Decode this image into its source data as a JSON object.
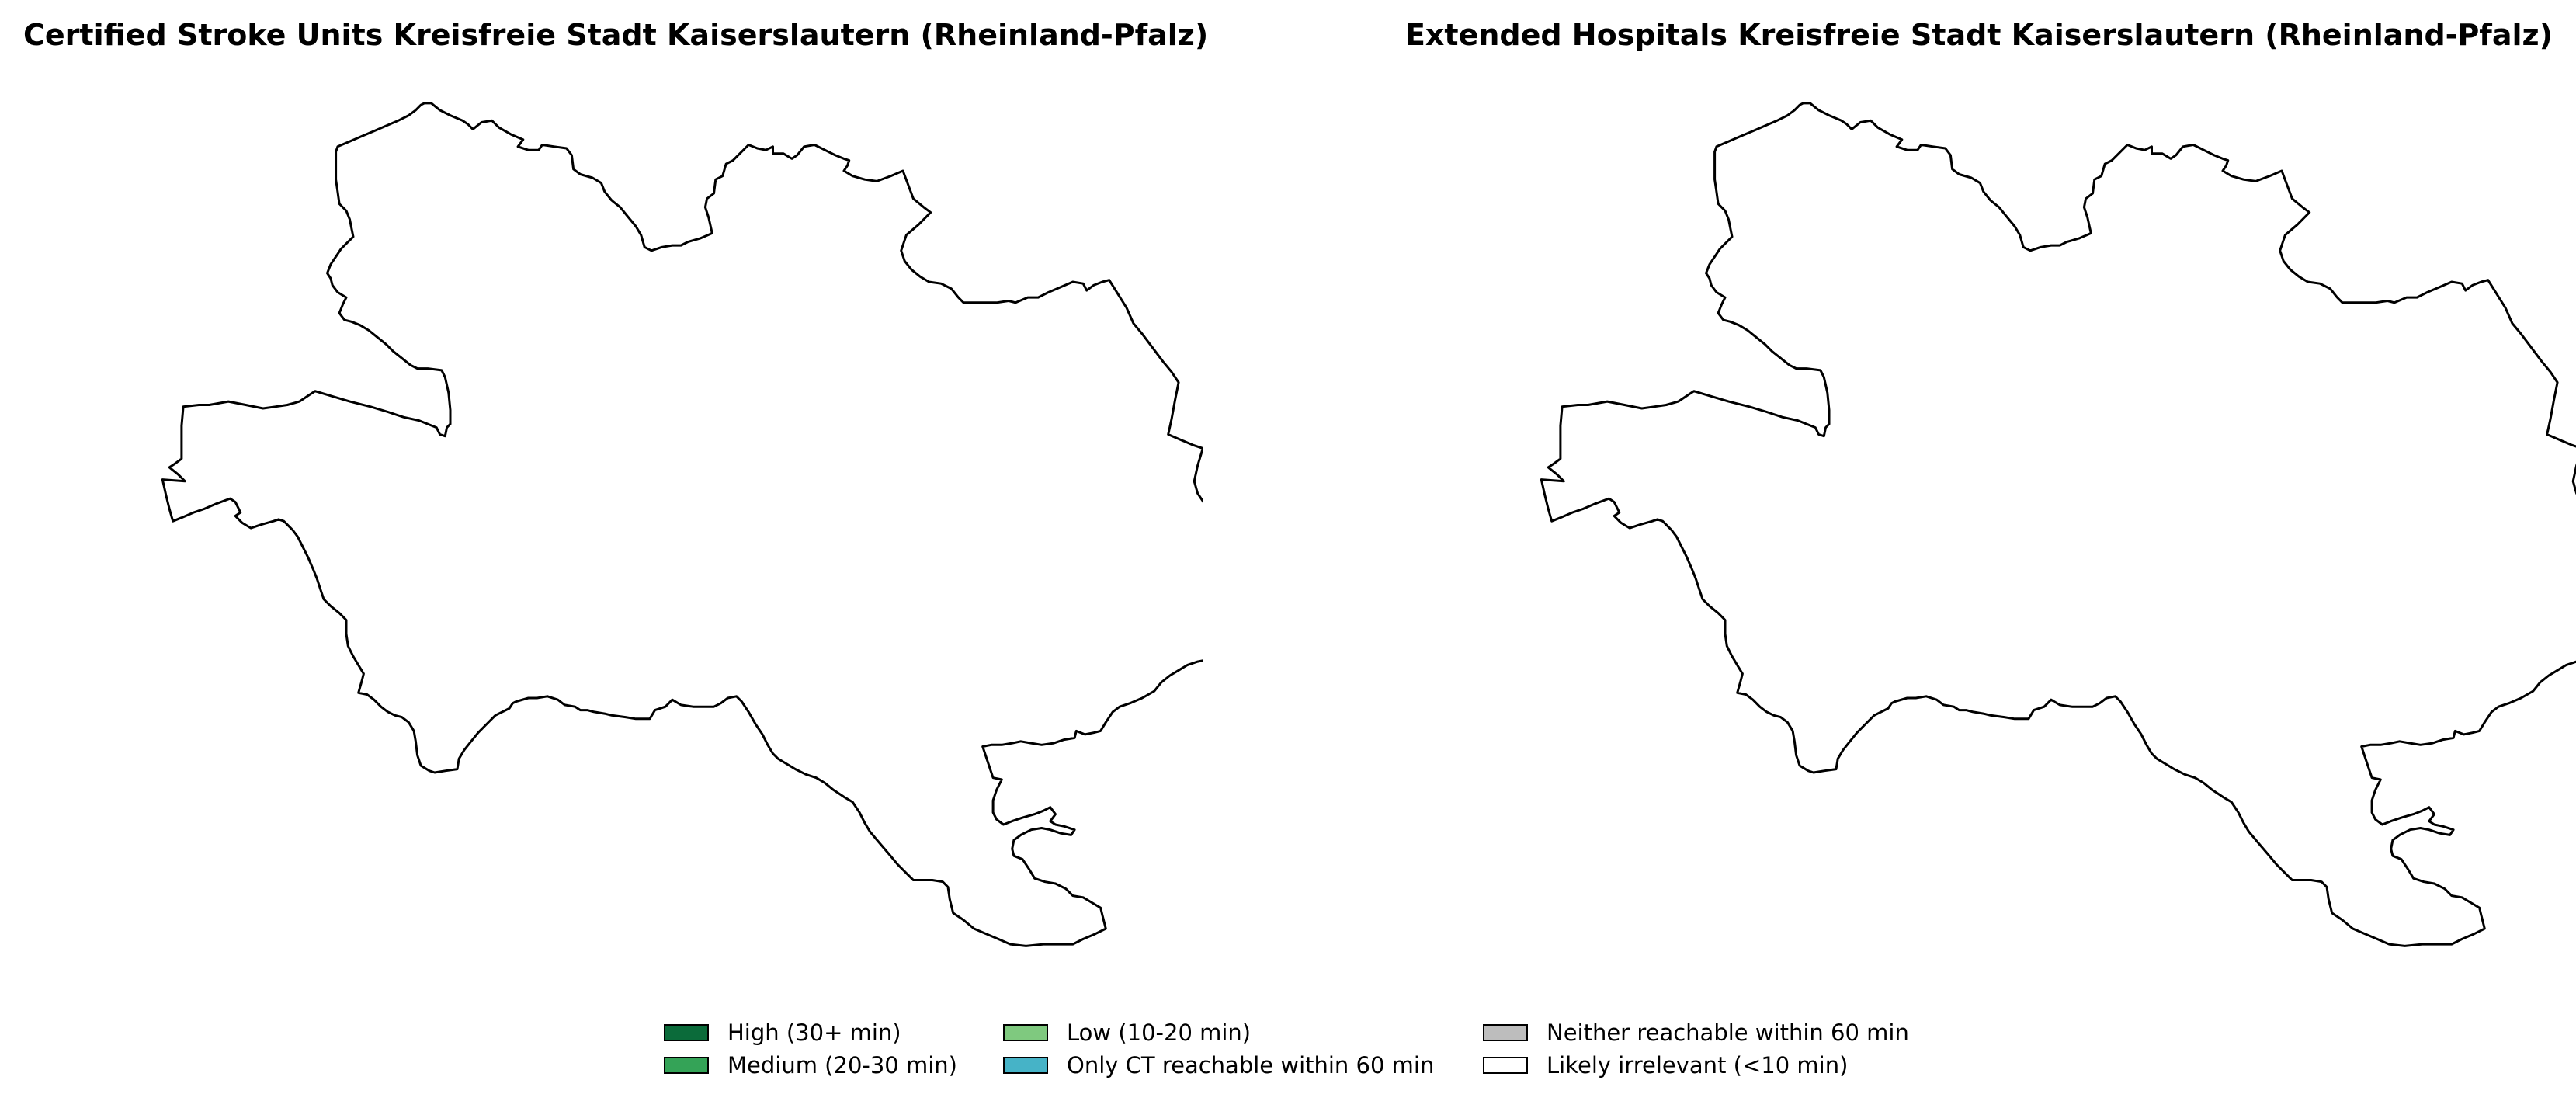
{
  "maps": [
    {
      "title": "Certified Stroke Units Kreisfreie Stadt Kaiserslautern (Rheinland-Pfalz)"
    },
    {
      "title": "Extended Hospitals Kreisfreie Stadt Kaiserslautern (Rheinland-Pfalz)"
    }
  ],
  "region_fill": "#ffffff",
  "legend": [
    {
      "label": "High (30+ min)",
      "color": "#0b6b3a"
    },
    {
      "label": "Medium (20-30 min)",
      "color": "#34a357"
    },
    {
      "label": "Low (10-20 min)",
      "color": "#7fc97f"
    },
    {
      "label": "Only CT reachable within 60 min",
      "color": "#46b3c7"
    },
    {
      "label": "Neither reachable within 60 min",
      "color": "#bdbdbd"
    },
    {
      "label": "Likely irrelevant (<10 min)",
      "color": "#ffffff"
    }
  ]
}
